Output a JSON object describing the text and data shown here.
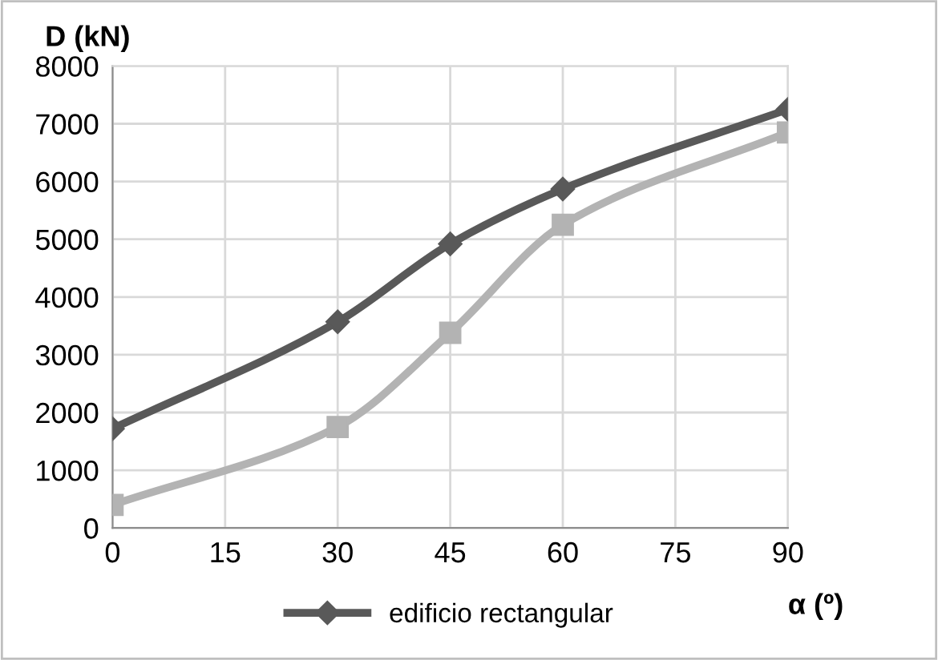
{
  "chart_data": {
    "type": "line",
    "xlabel": "α (º)",
    "ylabel": "D (kN)",
    "x": [
      0,
      30,
      45,
      60,
      90
    ],
    "series": [
      {
        "name": "edificio rectangular",
        "color": "#595959",
        "marker": "diamond",
        "values": [
          1720,
          3570,
          4920,
          5870,
          7250
        ]
      },
      {
        "color": "#b3b3b3",
        "marker": "square",
        "values": [
          400,
          1750,
          3380,
          5250,
          6850
        ]
      }
    ],
    "xlim": [
      0,
      90
    ],
    "xticks": [
      0,
      15,
      30,
      45,
      60,
      75,
      90
    ],
    "ylim": [
      0,
      8000
    ],
    "yticks": [
      0,
      1000,
      2000,
      3000,
      4000,
      5000,
      6000,
      7000,
      8000
    ],
    "grid": true,
    "legend": "bottom",
    "line_style": "solid"
  }
}
